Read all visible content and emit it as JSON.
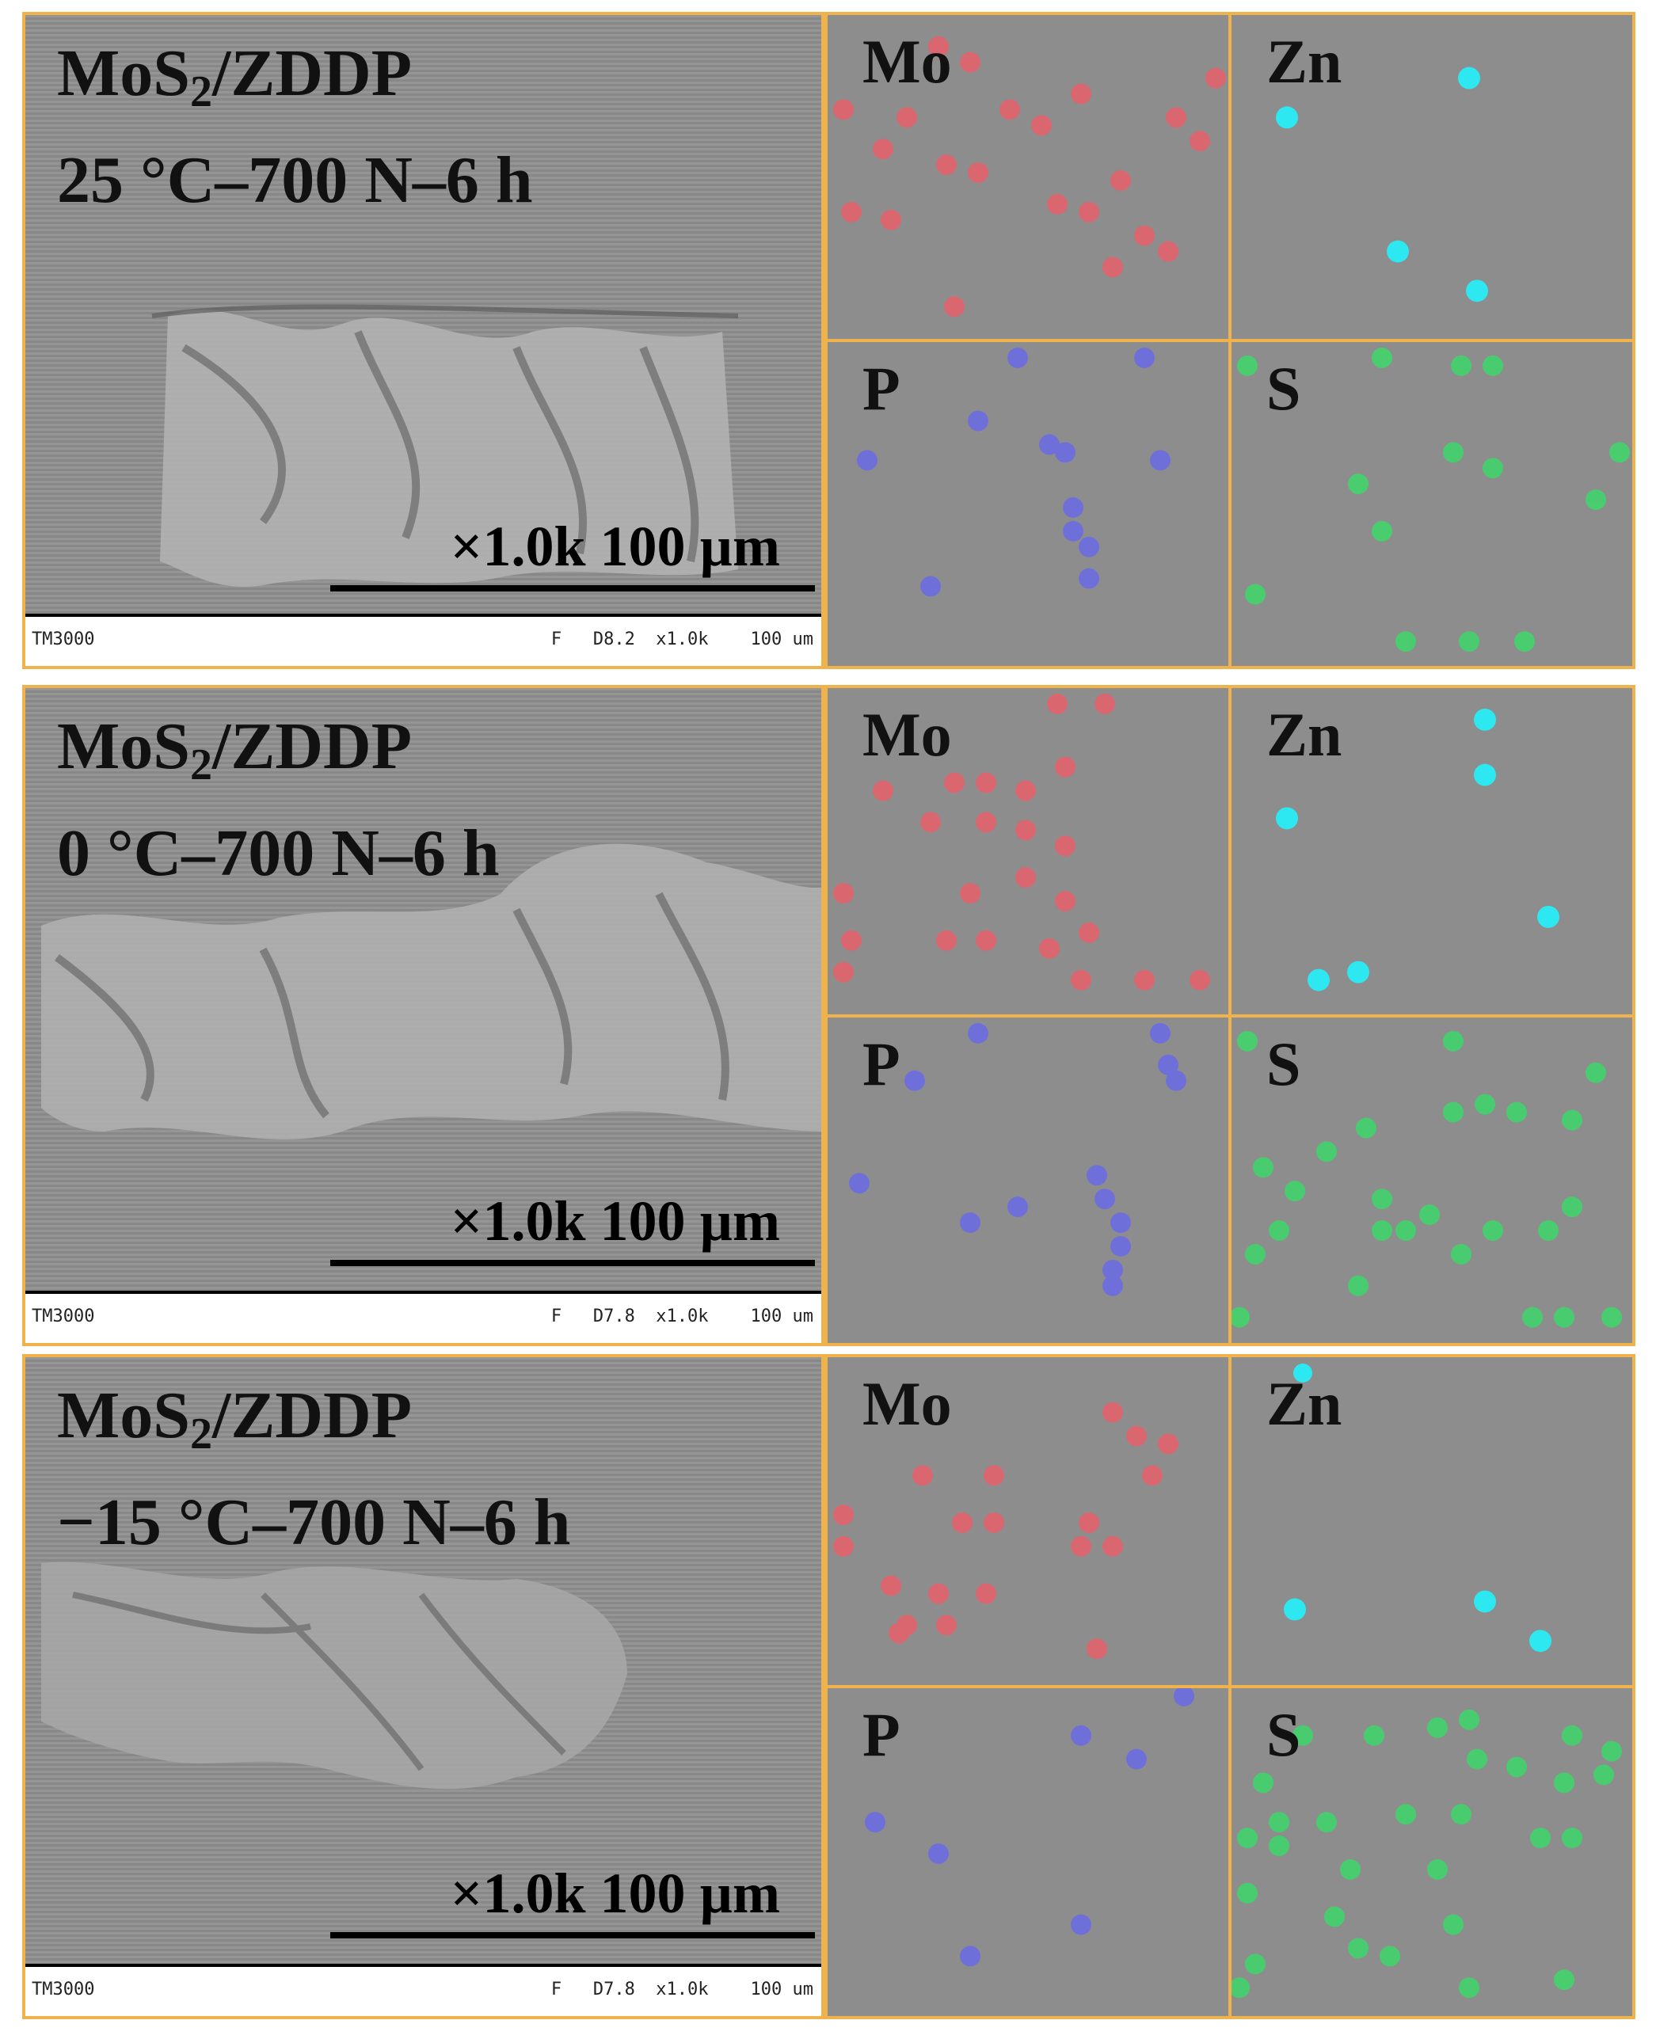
{
  "panels": [
    {
      "title_main": "MoS",
      "title_sub": "2",
      "title_rest": "/ZDDP",
      "condition": "25 °C–700 N–6 h",
      "scale_text": "×1.0k  100 µm",
      "footer_left": "TM3000",
      "footer_right": "F   D8.2  x1.0k    100 um",
      "maps": {
        "mo": "Mo",
        "zn": "Zn",
        "p": "P",
        "s": "S"
      }
    },
    {
      "title_main": "MoS",
      "title_sub": "2",
      "title_rest": "/ZDDP",
      "condition": "0 °C–700 N–6 h",
      "scale_text": "×1.0k  100 µm",
      "footer_left": "TM3000",
      "footer_right": "F   D7.8  x1.0k    100 um",
      "maps": {
        "mo": "Mo",
        "zn": "Zn",
        "p": "P",
        "s": "S"
      }
    },
    {
      "title_main": "MoS",
      "title_sub": "2",
      "title_rest": "/ZDDP",
      "condition": "−15 °C–700 N–6 h",
      "scale_text": "×1.0k  100 µm",
      "footer_left": "TM3000",
      "footer_right": "F   D7.8  x1.0k    100 um",
      "maps": {
        "mo": "Mo",
        "zn": "Zn",
        "p": "P",
        "s": "S"
      }
    }
  ],
  "colors": {
    "frame": "#f0b34c",
    "mo_dot": "#e8606a",
    "zn_dot": "#2de8f0",
    "p_dot": "#6a6ae8",
    "s_dot": "#3ed86a"
  }
}
